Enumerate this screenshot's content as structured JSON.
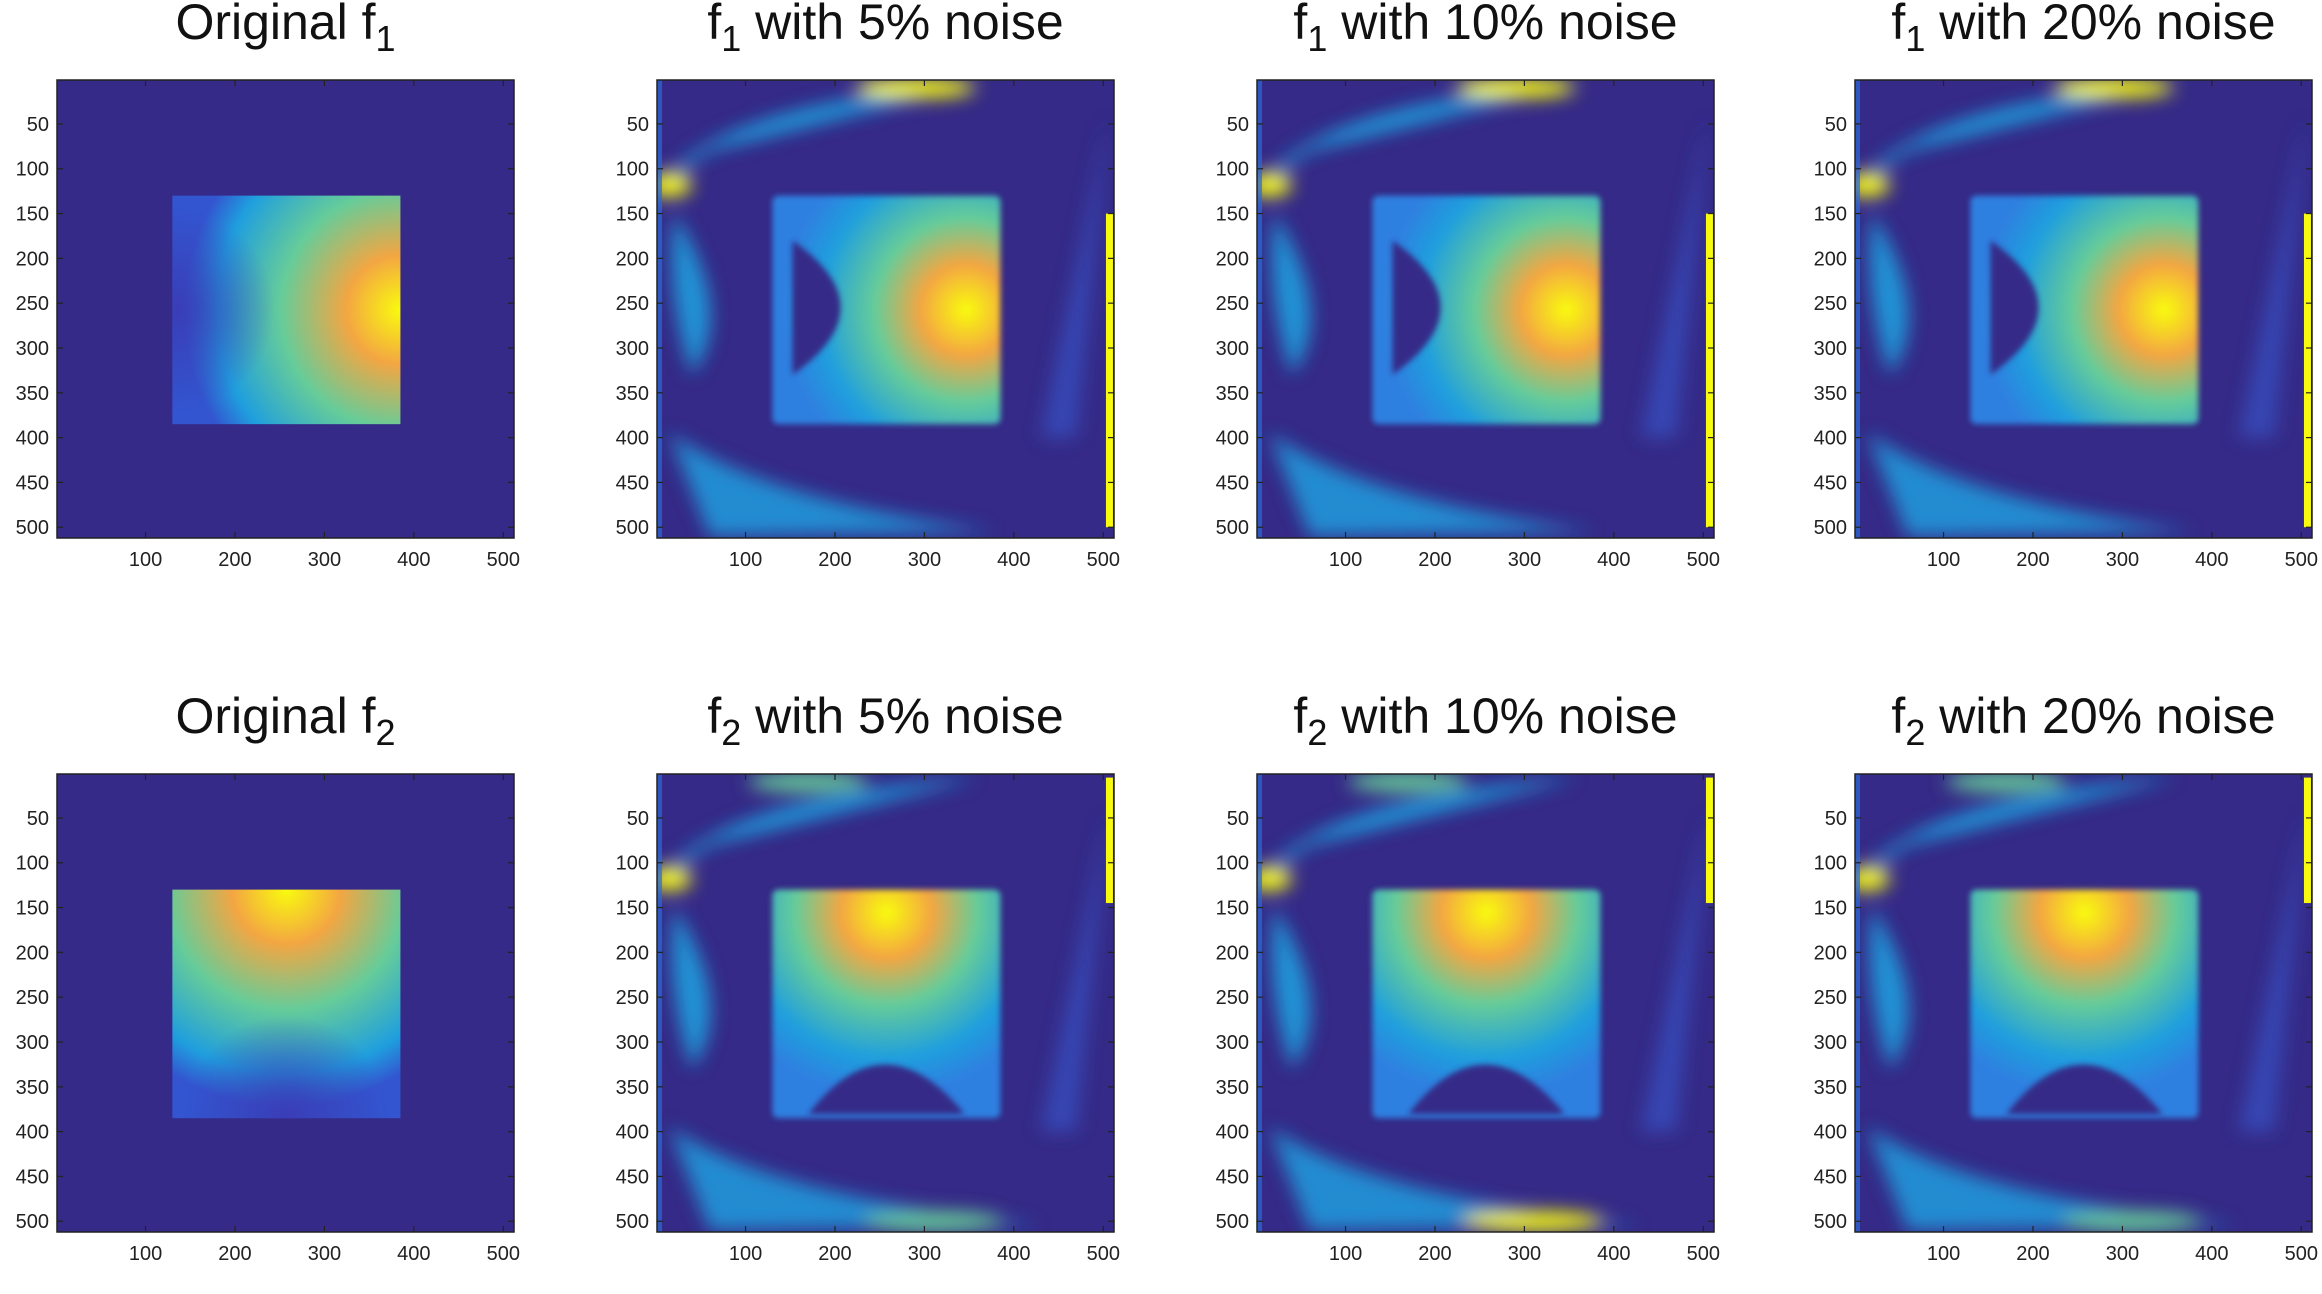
{
  "chart_data": [
    {
      "type": "heatmap",
      "title": "Original f",
      "subscript": "1",
      "x_ticks": [
        100,
        200,
        300,
        400,
        500
      ],
      "y_ticks": [
        50,
        100,
        150,
        200,
        250,
        300,
        350,
        400,
        450,
        500
      ],
      "xlim": [
        1,
        512
      ],
      "ylim": [
        1,
        512
      ],
      "colormap": "parula",
      "hotspot": "square 130–385, bright lobe at right edge"
    },
    {
      "type": "heatmap",
      "title": "with 5% noise",
      "subscript": "1",
      "prefix": "f",
      "x_ticks": [
        100,
        200,
        300,
        400,
        500
      ],
      "y_ticks": [
        50,
        100,
        150,
        200,
        250,
        300,
        350,
        400,
        450,
        500
      ],
      "xlim": [
        1,
        512
      ],
      "ylim": [
        1,
        512
      ],
      "colormap": "parula"
    },
    {
      "type": "heatmap",
      "title": "with 10% noise",
      "subscript": "1",
      "prefix": "f",
      "x_ticks": [
        100,
        200,
        300,
        400,
        500
      ],
      "y_ticks": [
        50,
        100,
        150,
        200,
        250,
        300,
        350,
        400,
        450,
        500
      ],
      "xlim": [
        1,
        512
      ],
      "ylim": [
        1,
        512
      ],
      "colormap": "parula"
    },
    {
      "type": "heatmap",
      "title": "with 20% noise",
      "subscript": "1",
      "prefix": "f",
      "x_ticks": [
        100,
        200,
        300,
        400,
        500
      ],
      "y_ticks": [
        50,
        100,
        150,
        200,
        250,
        300,
        350,
        400,
        450,
        500
      ],
      "xlim": [
        1,
        512
      ],
      "ylim": [
        1,
        512
      ],
      "colormap": "parula"
    },
    {
      "type": "heatmap",
      "title": "Original f",
      "subscript": "2",
      "x_ticks": [
        100,
        200,
        300,
        400,
        500
      ],
      "y_ticks": [
        50,
        100,
        150,
        200,
        250,
        300,
        350,
        400,
        450,
        500
      ],
      "xlim": [
        1,
        512
      ],
      "ylim": [
        1,
        512
      ],
      "colormap": "parula",
      "hotspot": "square 130–385, bright lobe at top edge"
    },
    {
      "type": "heatmap",
      "title": "with 5% noise",
      "subscript": "2",
      "prefix": "f",
      "x_ticks": [
        100,
        200,
        300,
        400,
        500
      ],
      "y_ticks": [
        50,
        100,
        150,
        200,
        250,
        300,
        350,
        400,
        450,
        500
      ],
      "xlim": [
        1,
        512
      ],
      "ylim": [
        1,
        512
      ],
      "colormap": "parula"
    },
    {
      "type": "heatmap",
      "title": "with 10% noise",
      "subscript": "2",
      "prefix": "f",
      "x_ticks": [
        100,
        200,
        300,
        400,
        500
      ],
      "y_ticks": [
        50,
        100,
        150,
        200,
        250,
        300,
        350,
        400,
        450,
        500
      ],
      "xlim": [
        1,
        512
      ],
      "ylim": [
        1,
        512
      ],
      "colormap": "parula"
    },
    {
      "type": "heatmap",
      "title": "with 20% noise",
      "subscript": "2",
      "prefix": "f",
      "x_ticks": [
        100,
        200,
        300,
        400,
        500
      ],
      "y_ticks": [
        50,
        100,
        150,
        200,
        250,
        300,
        350,
        400,
        450,
        500
      ],
      "xlim": [
        1,
        512
      ],
      "ylim": [
        1,
        512
      ],
      "colormap": "parula"
    }
  ],
  "colors": {
    "background": "#352a87",
    "mid": "#1f9ede",
    "light": "#66cc99",
    "hot": "#f9fb0e",
    "orange": "#f3a642"
  }
}
